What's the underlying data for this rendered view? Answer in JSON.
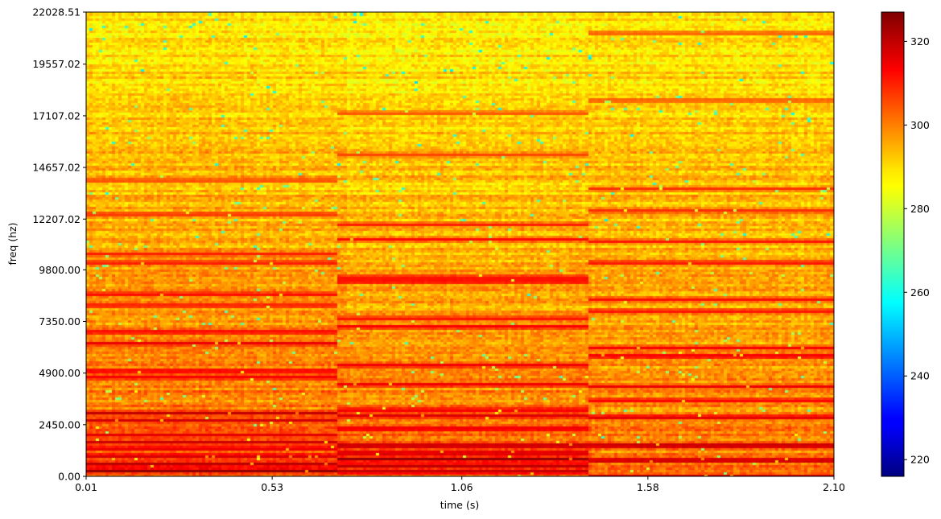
{
  "chart_data": {
    "type": "heatmap",
    "title": "",
    "xlabel": "time (s)",
    "ylabel": "freq (hz)",
    "xlim": [
      0.01,
      2.1
    ],
    "ylim": [
      0.0,
      22028.51
    ],
    "x_ticks": [
      "0.01",
      "0.53",
      "1.06",
      "1.58",
      "2.10"
    ],
    "x_tick_values": [
      0.01,
      0.53,
      1.06,
      1.58,
      2.1
    ],
    "y_ticks": [
      "0.00",
      "2450.00",
      "4900.00",
      "7350.00",
      "9800.00",
      "12207.02",
      "14657.02",
      "17107.02",
      "19557.02",
      "22028.51"
    ],
    "y_tick_values": [
      0.0,
      2450.0,
      4900.0,
      7350.0,
      9800.0,
      12207.02,
      14657.02,
      17107.02,
      19557.02,
      22028.51
    ],
    "colormap": "jet",
    "color_range": [
      216,
      327
    ],
    "colorbar_ticks": [
      "220",
      "240",
      "260",
      "280",
      "300",
      "320"
    ],
    "colorbar_tick_values": [
      220,
      240,
      260,
      280,
      300,
      320
    ],
    "segments": [
      {
        "t_start": 0.01,
        "t_end": 0.71,
        "base_low_freq": 306,
        "base_high_freq": 289,
        "harmonic_lines": [
          {
            "freq": 300,
            "level": 325
          },
          {
            "freq": 620,
            "level": 321
          },
          {
            "freq": 1000,
            "level": 318
          },
          {
            "freq": 1350,
            "level": 316
          },
          {
            "freq": 1650,
            "level": 319
          },
          {
            "freq": 2000,
            "level": 316
          },
          {
            "freq": 2700,
            "level": 318
          },
          {
            "freq": 3050,
            "level": 320
          },
          {
            "freq": 4750,
            "level": 314
          },
          {
            "freq": 5050,
            "level": 316
          },
          {
            "freq": 6350,
            "level": 316
          },
          {
            "freq": 6900,
            "level": 314
          },
          {
            "freq": 8150,
            "level": 313
          },
          {
            "freq": 8700,
            "level": 314
          },
          {
            "freq": 10200,
            "level": 312
          },
          {
            "freq": 10600,
            "level": 310
          },
          {
            "freq": 12500,
            "level": 309
          },
          {
            "freq": 14100,
            "level": 306
          }
        ]
      },
      {
        "t_start": 0.71,
        "t_end": 1.41,
        "base_low_freq": 305,
        "base_high_freq": 288,
        "harmonic_lines": [
          {
            "freq": 250,
            "level": 321
          },
          {
            "freq": 550,
            "level": 322
          },
          {
            "freq": 850,
            "level": 325
          },
          {
            "freq": 1150,
            "level": 321
          },
          {
            "freq": 1500,
            "level": 323
          },
          {
            "freq": 2300,
            "level": 317
          },
          {
            "freq": 2900,
            "level": 318
          },
          {
            "freq": 3200,
            "level": 317
          },
          {
            "freq": 4400,
            "level": 315
          },
          {
            "freq": 5300,
            "level": 316
          },
          {
            "freq": 7150,
            "level": 314
          },
          {
            "freq": 7550,
            "level": 313
          },
          {
            "freq": 9300,
            "level": 315
          },
          {
            "freq": 9500,
            "level": 313
          },
          {
            "freq": 11300,
            "level": 312
          },
          {
            "freq": 12000,
            "level": 310
          },
          {
            "freq": 15300,
            "level": 306
          },
          {
            "freq": 17300,
            "level": 305
          }
        ]
      },
      {
        "t_start": 1.41,
        "t_end": 2.1,
        "base_low_freq": 302,
        "base_high_freq": 289,
        "harmonic_lines": [
          {
            "freq": 50,
            "level": 318
          },
          {
            "freq": 800,
            "level": 323
          },
          {
            "freq": 1500,
            "level": 324
          },
          {
            "freq": 2850,
            "level": 319
          },
          {
            "freq": 3650,
            "level": 315
          },
          {
            "freq": 4300,
            "level": 315
          },
          {
            "freq": 5750,
            "level": 317
          },
          {
            "freq": 6150,
            "level": 314
          },
          {
            "freq": 7900,
            "level": 313
          },
          {
            "freq": 8450,
            "level": 312
          },
          {
            "freq": 10200,
            "level": 313
          },
          {
            "freq": 11200,
            "level": 311
          },
          {
            "freq": 12650,
            "level": 309
          },
          {
            "freq": 13700,
            "level": 308
          },
          {
            "freq": 17900,
            "level": 305
          },
          {
            "freq": 21100,
            "level": 305
          }
        ]
      }
    ]
  }
}
